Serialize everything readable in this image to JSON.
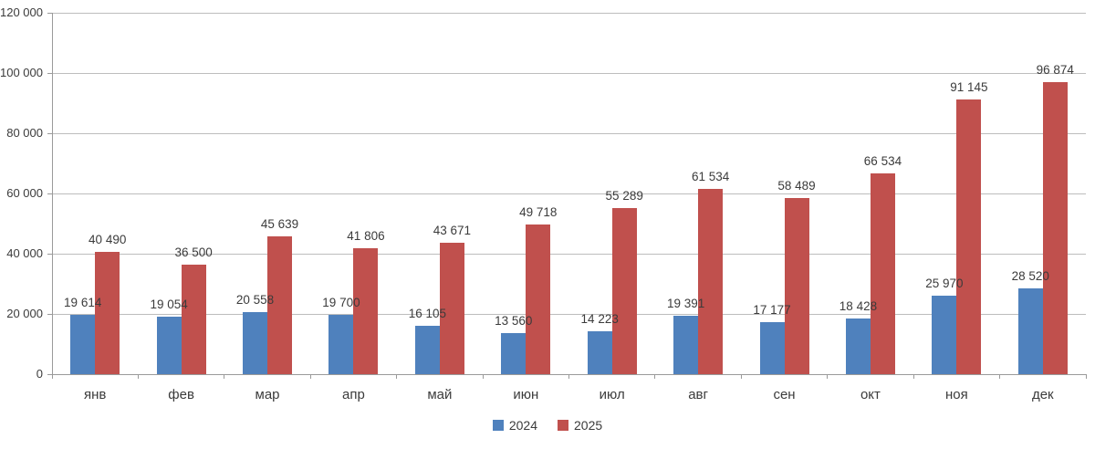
{
  "chart_data": {
    "type": "bar",
    "title": "",
    "xlabel": "",
    "ylabel": "",
    "categories": [
      "янв",
      "фев",
      "мар",
      "апр",
      "май",
      "июн",
      "июл",
      "авг",
      "сен",
      "окт",
      "ноя",
      "дек"
    ],
    "series": [
      {
        "name": "2024",
        "color": "#4F81BD",
        "values": [
          19614,
          19054,
          20558,
          19700,
          16105,
          13560,
          14223,
          19391,
          17177,
          18428,
          25970,
          28520
        ],
        "labels": [
          "19 614",
          "19 054",
          "20 558",
          "19 700",
          "16 105",
          "13 560",
          "14 223",
          "19 391",
          "17 177",
          "18 428",
          "25 970",
          "28 520"
        ]
      },
      {
        "name": "2025",
        "color": "#C0504D",
        "values": [
          40490,
          36500,
          45639,
          41806,
          43671,
          49718,
          55289,
          61534,
          58489,
          66534,
          91145,
          96874
        ],
        "labels": [
          "40 490",
          "36 500",
          "45 639",
          "41 806",
          "43 671",
          "49 718",
          "55 289",
          "61 534",
          "58 489",
          "66 534",
          "91 145",
          "96 874"
        ]
      }
    ],
    "ylim": [
      0,
      120000
    ],
    "y_ticks": [
      {
        "value": 0,
        "label": "0"
      },
      {
        "value": 20000,
        "label": "20 000"
      },
      {
        "value": 40000,
        "label": "40 000"
      },
      {
        "value": 60000,
        "label": "60 000"
      },
      {
        "value": 80000,
        "label": "80 000"
      },
      {
        "value": 100000,
        "label": "100 000"
      },
      {
        "value": 120000,
        "label": "120 000"
      }
    ],
    "grid": true,
    "legend_position": "bottom"
  },
  "colors": {
    "grid": "#BDBDBD",
    "axis": "#9A9A9A",
    "text": "#3B3B3B",
    "background": "#FFFFFF"
  }
}
